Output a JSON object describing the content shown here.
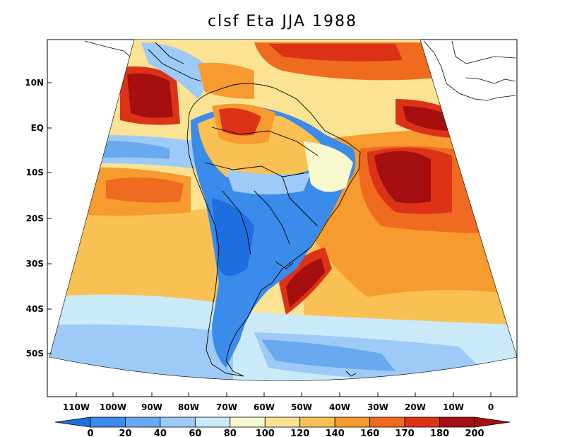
{
  "title": "clsf Eta JJA 1988",
  "lat_labels": [
    "10N",
    "EQ",
    "10S",
    "20S",
    "30S",
    "40S",
    "50S"
  ],
  "lon_labels": [
    "110W",
    "100W",
    "90W",
    "80W",
    "70W",
    "60W",
    "50W",
    "40W",
    "30W",
    "20W",
    "10W",
    "0"
  ],
  "colorbar": {
    "labels": [
      "0",
      "20",
      "40",
      "60",
      "80",
      "100",
      "120",
      "140",
      "160",
      "170",
      "180",
      "200"
    ],
    "colors": [
      "#1d6fe0",
      "#3a8bea",
      "#68a9f0",
      "#9dcaf6",
      "#caeafa",
      "#f7f8ce",
      "#fbe393",
      "#f9c153",
      "#f79a2f",
      "#ef6b1f",
      "#dc3318",
      "#a50f0f"
    ]
  },
  "colors": {
    "ocean_blue": "#caeafa",
    "land_blue": "#3a8bea",
    "warm_red": "#dc3318",
    "deep_red": "#a50f0f",
    "orange": "#f79a2f",
    "yellow": "#fbe393"
  }
}
